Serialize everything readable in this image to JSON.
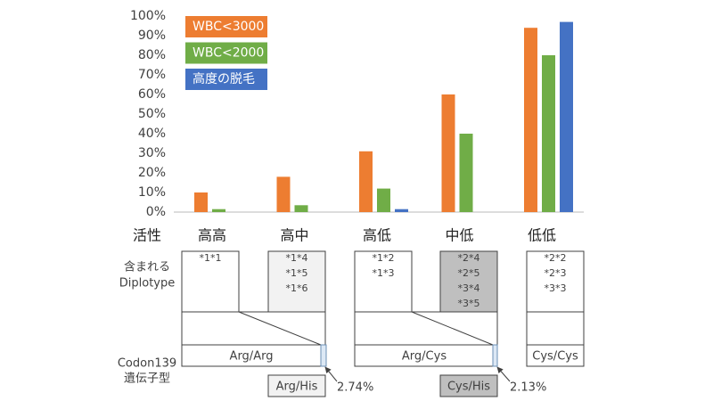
{
  "chart_data": {
    "type": "bar",
    "categories": [
      "高高",
      "高中",
      "高低",
      "中低",
      "低低"
    ],
    "series": [
      {
        "name": "WBC<3000",
        "color": "#ed7d31",
        "values": [
          10,
          18,
          31,
          60,
          94
        ]
      },
      {
        "name": "WBC<2000",
        "color": "#70ad47",
        "values": [
          1.5,
          3.5,
          12,
          40,
          80
        ]
      },
      {
        "name": "高度の脱毛",
        "color": "#4472c4",
        "values": [
          0,
          0,
          1.5,
          0,
          97
        ]
      }
    ],
    "ylim": [
      0,
      100
    ],
    "yticks": [
      {
        "value": 0,
        "label": "0%"
      },
      {
        "value": 10,
        "label": "10%"
      },
      {
        "value": 20,
        "label": "20%"
      },
      {
        "value": 30,
        "label": "30%"
      },
      {
        "value": 40,
        "label": "40%"
      },
      {
        "value": 50,
        "label": "50%"
      },
      {
        "value": 60,
        "label": "60%"
      },
      {
        "value": 70,
        "label": "70%"
      },
      {
        "value": 80,
        "label": "80%"
      },
      {
        "value": 90,
        "label": "90%"
      },
      {
        "value": 100,
        "label": "100%"
      }
    ],
    "grid": false,
    "legend": "upper left"
  },
  "diagram": {
    "activity_label": "活性",
    "diplotype_label": [
      "含まれる",
      "Diplotype"
    ],
    "diplotypes": [
      [
        "*1*1"
      ],
      [
        "*1*4",
        "*1*5",
        "*1*6"
      ],
      [
        "*1*2",
        "*1*3"
      ],
      [
        "*2*4",
        "*2*5",
        "*3*4",
        "*3*5"
      ],
      [
        "*2*2",
        "*2*3",
        "*3*3"
      ]
    ],
    "genotype_label": [
      "Codon139",
      "遺伝子型"
    ],
    "genotypes": {
      "arg_arg": "Arg/Arg",
      "arg_his": "Arg/His",
      "arg_his_pct": "2.74%",
      "arg_cys": "Arg/Cys",
      "cys_his": "Cys/His",
      "cys_his_pct": "2.13%",
      "cys_cys": "Cys/Cys"
    }
  }
}
